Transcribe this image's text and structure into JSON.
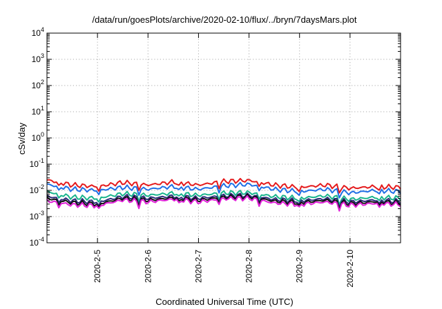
{
  "chart_data": {
    "type": "line",
    "title": "/data/run/goesPlots/archive/2020-02-10/flux/../bryn/7daysMars.plot",
    "xlabel": "Coordinated Universal Time (UTC)",
    "ylabel": "cSv/day",
    "yscale": "log",
    "ylim": [
      0.0001,
      10000
    ],
    "xlim": [
      "2020-02-04",
      "2020-02-11"
    ],
    "y_tick_labels": [
      {
        "base": "10",
        "exp": "-4"
      },
      {
        "base": "10",
        "exp": "-3"
      },
      {
        "base": "10",
        "exp": "-2"
      },
      {
        "base": "10",
        "exp": "-1"
      },
      {
        "base": "10",
        "exp": "0"
      },
      {
        "base": "10",
        "exp": "1"
      },
      {
        "base": "10",
        "exp": "2"
      },
      {
        "base": "10",
        "exp": "3"
      },
      {
        "base": "10",
        "exp": "4"
      }
    ],
    "x_tick_labels": [
      "2020-2-5",
      "2020-2-6",
      "2020-2-7",
      "2020-2-8",
      "2020-2-9",
      "2020-2-10"
    ],
    "grid": true,
    "x": [
      "2020-02-04",
      "2020-02-04T12:00",
      "2020-02-05",
      "2020-02-05T12:00",
      "2020-02-06",
      "2020-02-06T12:00",
      "2020-02-07",
      "2020-02-07T12:00",
      "2020-02-08",
      "2020-02-08T12:00",
      "2020-02-09",
      "2020-02-09T12:00",
      "2020-02-10",
      "2020-02-10T12:00",
      "2020-02-11"
    ],
    "series": [
      {
        "color": "#e41a1c",
        "values": [
          0.025,
          0.016,
          0.014,
          0.02,
          0.016,
          0.021,
          0.016,
          0.022,
          0.024,
          0.016,
          0.013,
          0.016,
          0.012,
          0.014,
          0.013
        ]
      },
      {
        "color": "#1f6fe5",
        "values": [
          0.017,
          0.011,
          0.01,
          0.013,
          0.011,
          0.014,
          0.011,
          0.015,
          0.017,
          0.011,
          0.009,
          0.011,
          0.008,
          0.01,
          0.009
        ]
      },
      {
        "color": "#18b48c",
        "values": [
          0.009,
          0.0055,
          0.005,
          0.0075,
          0.0065,
          0.0078,
          0.0065,
          0.008,
          0.0082,
          0.0058,
          0.005,
          0.0062,
          0.0045,
          0.0055,
          0.005
        ]
      },
      {
        "color": "#2b2b7a",
        "values": [
          0.006,
          0.004,
          0.0036,
          0.0058,
          0.005,
          0.006,
          0.005,
          0.0062,
          0.0065,
          0.0045,
          0.004,
          0.0048,
          0.0036,
          0.0043,
          0.0038
        ]
      },
      {
        "color": "#111111",
        "values": [
          0.005,
          0.0034,
          0.003,
          0.005,
          0.0042,
          0.0052,
          0.0042,
          0.0055,
          0.0058,
          0.0039,
          0.0034,
          0.0042,
          0.0031,
          0.0037,
          0.0033
        ]
      },
      {
        "color": "#e020d8",
        "values": [
          0.004,
          0.0028,
          0.0026,
          0.0043,
          0.0036,
          0.0046,
          0.0036,
          0.0048,
          0.005,
          0.0033,
          0.0029,
          0.0036,
          0.0027,
          0.0032,
          0.0029
        ]
      }
    ]
  }
}
